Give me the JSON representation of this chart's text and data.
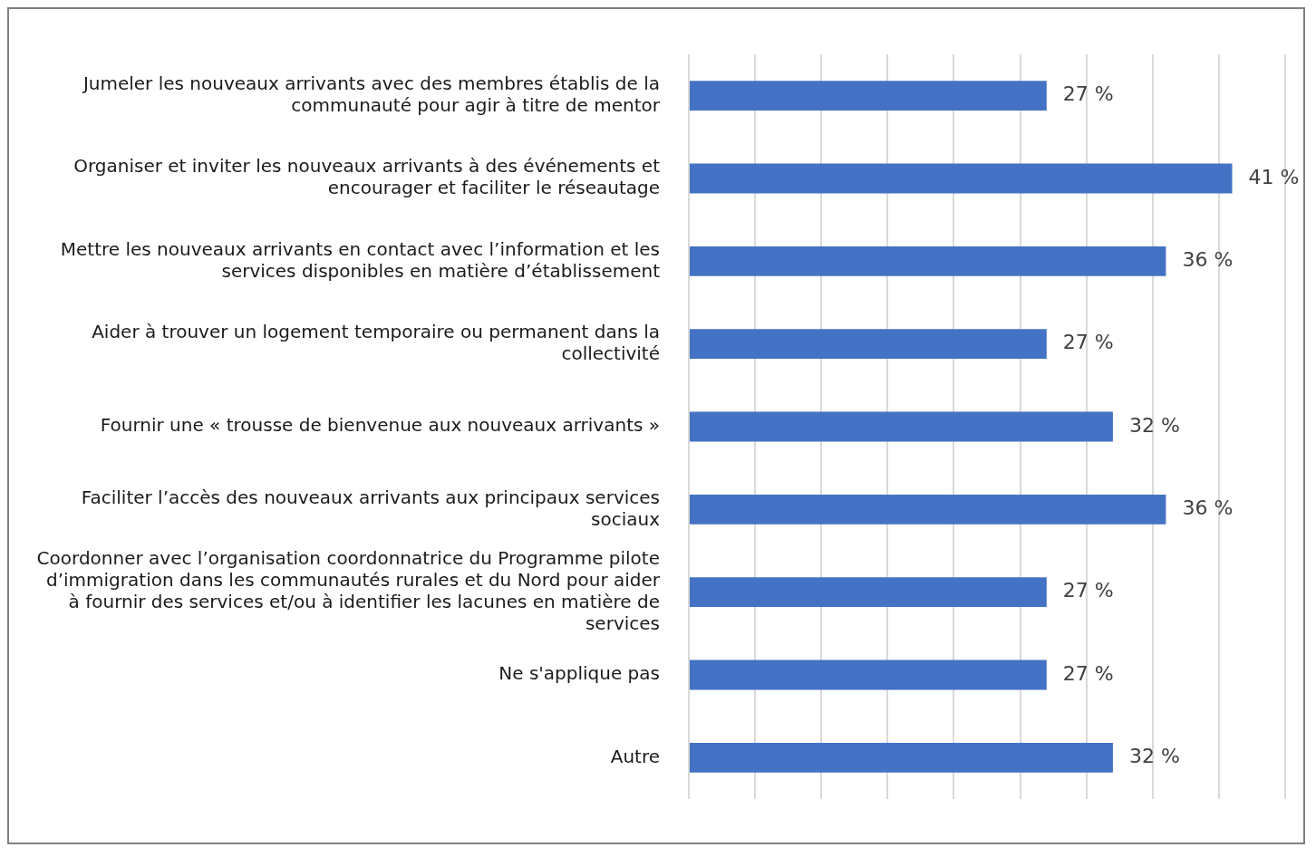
{
  "chart_data": {
    "type": "bar",
    "orientation": "horizontal",
    "categories": [
      "Jumeler les nouveaux arrivants avec des membres établis de la communauté pour agir à titre de mentor",
      "Organiser et inviter les nouveaux arrivants à des événements et encourager et faciliter le réseautage",
      "Mettre les nouveaux arrivants en contact avec l’information et les services disponibles en matière d’établissement",
      "Aider à trouver un logement temporaire ou permanent dans la collectivité",
      "Fournir une « trousse de bienvenue aux nouveaux arrivants »",
      "Faciliter l’accès des nouveaux arrivants aux principaux services sociaux",
      "Coordonner avec l’organisation coordonnatrice du Programme pilote d’immigration dans les communautés rurales et du Nord pour aider à fournir des services et/ou à identifier les lacunes en matière de services",
      "Ne s'applique pas",
      "Autre"
    ],
    "values": [
      27,
      41,
      36,
      27,
      32,
      36,
      27,
      27,
      32
    ],
    "value_labels": [
      "27 %",
      "41 %",
      "36 %",
      "27 %",
      "32 %",
      "36 %",
      "27 %",
      "27 %",
      "32 %"
    ],
    "color": "#4472c4",
    "xlim": [
      0,
      45
    ],
    "xticks": [
      {
        "value": 0,
        "label": null
      },
      {
        "value": 5,
        "label": null
      },
      {
        "value": 10,
        "label": null
      },
      {
        "value": 15,
        "label": null
      },
      {
        "value": 20,
        "label": null
      },
      {
        "value": 25,
        "label": null
      },
      {
        "value": 30,
        "label": null
      },
      {
        "value": 35,
        "label": null
      },
      {
        "value": 40,
        "label": null
      },
      {
        "value": 45,
        "label": null
      }
    ],
    "grid": "x",
    "tick_labels": "y",
    "legend": false
  }
}
